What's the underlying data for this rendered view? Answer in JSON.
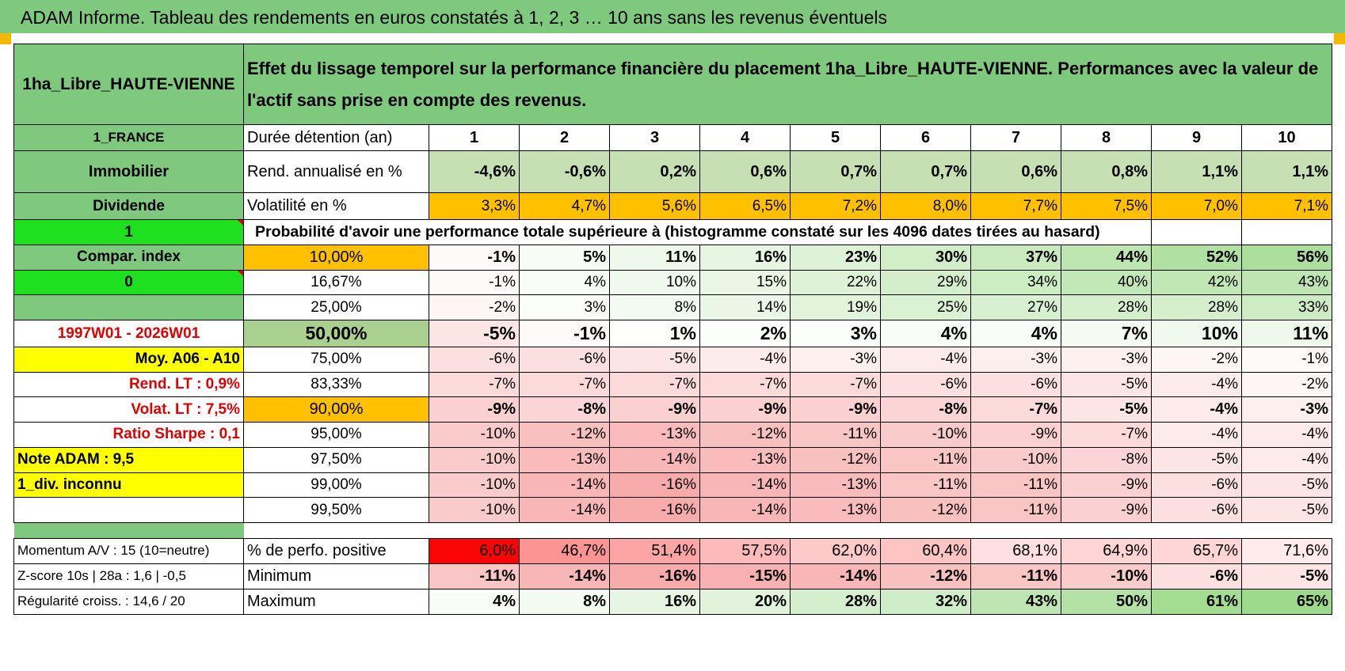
{
  "title": "ADAM Informe. Tableau des rendements en euros constatés à 1, 2, 3 … 10 ans sans les revenus éventuels",
  "asset_name": "1ha_Libre_HAUTE-VIENNE",
  "header_text": "Effet du lissage temporel sur la performance financière du placement 1ha_Libre_HAUTE-VIENNE. Performances avec la valeur de l'actif sans prise en compte des revenus.",
  "left_panel": {
    "country": "1_FRANCE",
    "category": "Immobilier",
    "income_type": "Dividende",
    "value_1": "1",
    "compar_index": "Compar. index",
    "value_0": "0",
    "period": "1997W01 - 2026W01",
    "moy": "Moy. A06 - A10",
    "rend_lt": "Rend. LT :    0,9%",
    "volat_lt": "Volat. LT :    7,5%",
    "sharpe": "Ratio Sharpe :     0,1",
    "note": "Note ADAM : 9,5",
    "div": "1_div. inconnu",
    "momentum": "Momentum A/V : 15 (10=neutre)",
    "zscore": "Z-score 10s | 28a : 1,6 | -0,5",
    "regularite": "Régularité croiss. : 14,6 / 20"
  },
  "durations_label": "Durée détention (an)",
  "durations": [
    "1",
    "2",
    "3",
    "4",
    "5",
    "6",
    "7",
    "8",
    "9",
    "10"
  ],
  "rend_label": "Rend. annualisé en %",
  "rend": [
    "-4,6%",
    "-0,6%",
    "0,2%",
    "0,6%",
    "0,7%",
    "0,7%",
    "0,6%",
    "0,8%",
    "1,1%",
    "1,1%"
  ],
  "vol_label": "Volatilité en %",
  "vol": [
    "3,3%",
    "4,7%",
    "5,6%",
    "6,5%",
    "7,2%",
    "8,0%",
    "7,7%",
    "7,5%",
    "7,0%",
    "7,1%"
  ],
  "prob_label": "Probabilité d'avoir une performance totale supérieure à (histogramme constaté sur les 4096 dates tirées au hasard)",
  "quantiles": [
    {
      "p": "10,00%",
      "v": [
        "-1%",
        "5%",
        "11%",
        "16%",
        "23%",
        "30%",
        "37%",
        "44%",
        "52%",
        "56%"
      ]
    },
    {
      "p": "16,67%",
      "v": [
        "-1%",
        "4%",
        "10%",
        "15%",
        "22%",
        "29%",
        "34%",
        "40%",
        "42%",
        "43%"
      ]
    },
    {
      "p": "25,00%",
      "v": [
        "-2%",
        "3%",
        "8%",
        "14%",
        "19%",
        "25%",
        "27%",
        "28%",
        "28%",
        "33%"
      ]
    },
    {
      "p": "50,00%",
      "v": [
        "-5%",
        "-1%",
        "1%",
        "2%",
        "3%",
        "4%",
        "4%",
        "7%",
        "10%",
        "11%"
      ]
    },
    {
      "p": "75,00%",
      "v": [
        "-6%",
        "-6%",
        "-5%",
        "-4%",
        "-3%",
        "-4%",
        "-3%",
        "-3%",
        "-2%",
        "-1%"
      ]
    },
    {
      "p": "83,33%",
      "v": [
        "-7%",
        "-7%",
        "-7%",
        "-7%",
        "-7%",
        "-6%",
        "-6%",
        "-5%",
        "-4%",
        "-2%"
      ]
    },
    {
      "p": "90,00%",
      "v": [
        "-9%",
        "-8%",
        "-9%",
        "-9%",
        "-9%",
        "-8%",
        "-7%",
        "-5%",
        "-4%",
        "-3%"
      ]
    },
    {
      "p": "95,00%",
      "v": [
        "-10%",
        "-12%",
        "-13%",
        "-12%",
        "-11%",
        "-10%",
        "-9%",
        "-7%",
        "-4%",
        "-4%"
      ]
    },
    {
      "p": "97,50%",
      "v": [
        "-10%",
        "-13%",
        "-14%",
        "-13%",
        "-12%",
        "-11%",
        "-10%",
        "-8%",
        "-5%",
        "-4%"
      ]
    },
    {
      "p": "99,00%",
      "v": [
        "-10%",
        "-14%",
        "-16%",
        "-14%",
        "-13%",
        "-11%",
        "-11%",
        "-9%",
        "-6%",
        "-5%"
      ]
    },
    {
      "p": "99,50%",
      "v": [
        "-10%",
        "-14%",
        "-16%",
        "-14%",
        "-13%",
        "-12%",
        "-11%",
        "-9%",
        "-6%",
        "-5%"
      ]
    }
  ],
  "pos_label": "% de perfo. positive",
  "pos": [
    "6,0%",
    "46,7%",
    "51,4%",
    "57,5%",
    "62,0%",
    "60,4%",
    "68,1%",
    "64,9%",
    "65,7%",
    "71,6%"
  ],
  "min_label": "Minimum",
  "min": [
    "-11%",
    "-14%",
    "-16%",
    "-15%",
    "-14%",
    "-12%",
    "-11%",
    "-10%",
    "-6%",
    "-5%"
  ],
  "max_label": "Maximum",
  "max": [
    "4%",
    "8%",
    "16%",
    "20%",
    "28%",
    "32%",
    "43%",
    "50%",
    "61%",
    "65%"
  ],
  "colors": {
    "header_green": "#7fc97f",
    "bright_green": "#1fe01f",
    "yellow": "#ffff00",
    "orange": "#ffc000",
    "red_text": "#e00000"
  }
}
